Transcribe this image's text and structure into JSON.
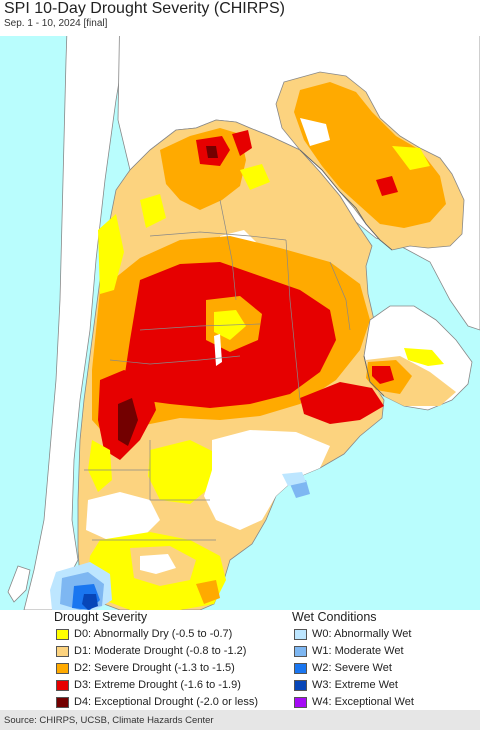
{
  "title": "SPI 10-Day Drought Severity (CHIRPS)",
  "subtitle": "Sep. 1 - 10, 2024 [final]",
  "colors": {
    "ocean": "#b9fdfd",
    "neighbor_land": "#ffffff",
    "borders": "#888888",
    "D0": "#ffff00",
    "D1": "#fcd37f",
    "D2": "#ffaa00",
    "D3": "#e60000",
    "D4": "#730000",
    "W0": "#bde6ff",
    "W1": "#7eb7f2",
    "W2": "#1a76f0",
    "W3": "#0746b8",
    "W4": "#a50af5"
  },
  "legend": {
    "drought_title": "Drought Severity",
    "wet_title": "Wet Conditions",
    "drought_items": [
      {
        "label": "D0: Abnormally Dry (-0.5 to -0.7)",
        "color": "#ffff00"
      },
      {
        "label": "D1: Moderate Drought (-0.8 to -1.2)",
        "color": "#fcd37f"
      },
      {
        "label": "D2: Severe Drought (-1.3 to -1.5)",
        "color": "#ffaa00"
      },
      {
        "label": "D3: Extreme Drought (-1.6 to -1.9)",
        "color": "#e60000"
      },
      {
        "label": "D4: Exceptional Drought (-2.0 or less)",
        "color": "#730000"
      }
    ],
    "wet_items": [
      {
        "label": "W0: Abnormally Wet",
        "color": "#bde6ff"
      },
      {
        "label": "W1: Moderate Wet",
        "color": "#7eb7f2"
      },
      {
        "label": "W2: Severe Wet",
        "color": "#1a76f0"
      },
      {
        "label": "W3: Extreme Wet",
        "color": "#0746b8"
      },
      {
        "label": "W4: Exceptional Wet",
        "color": "#a50af5"
      }
    ]
  },
  "source": "Source: CHIRPS, UCSB, Climate Hazards Center"
}
